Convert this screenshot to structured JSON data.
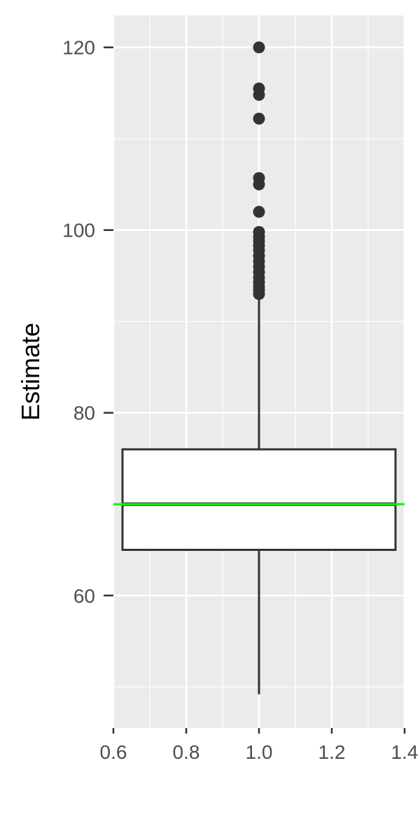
{
  "chart_data": {
    "type": "boxplot",
    "title": "",
    "xlabel": "",
    "ylabel": "Estimate",
    "xlim": [
      0.6,
      1.4
    ],
    "ylim": [
      45.5,
      123.5
    ],
    "x_ticks": [
      0.6,
      0.8,
      1.0,
      1.2,
      1.4
    ],
    "y_ticks": [
      60,
      80,
      100,
      120
    ],
    "grid": true,
    "box": {
      "x": 1.0,
      "xmin": 0.625,
      "xmax": 1.375,
      "lower_whisker": 49.2,
      "q1": 65,
      "median": 70,
      "q3": 76,
      "upper_whisker": 92.8
    },
    "outliers": [
      93.0,
      93.4,
      93.8,
      94.3,
      94.8,
      95.4,
      96.0,
      96.6,
      97.2,
      97.8,
      98.3,
      98.8,
      99.3,
      99.8,
      102.0,
      105.0,
      105.7,
      112.2,
      114.8,
      115.5,
      120.0
    ],
    "reference_line": {
      "y": 70,
      "color": "#00ff00"
    },
    "colors": {
      "panel_background": "#ebebeb",
      "grid_line": "#ffffff",
      "box_stroke": "#333333",
      "box_fill": "#ffffff",
      "outlier": "#333333",
      "tick_text": "#4d4d4d",
      "axis_title": "#000000"
    }
  }
}
